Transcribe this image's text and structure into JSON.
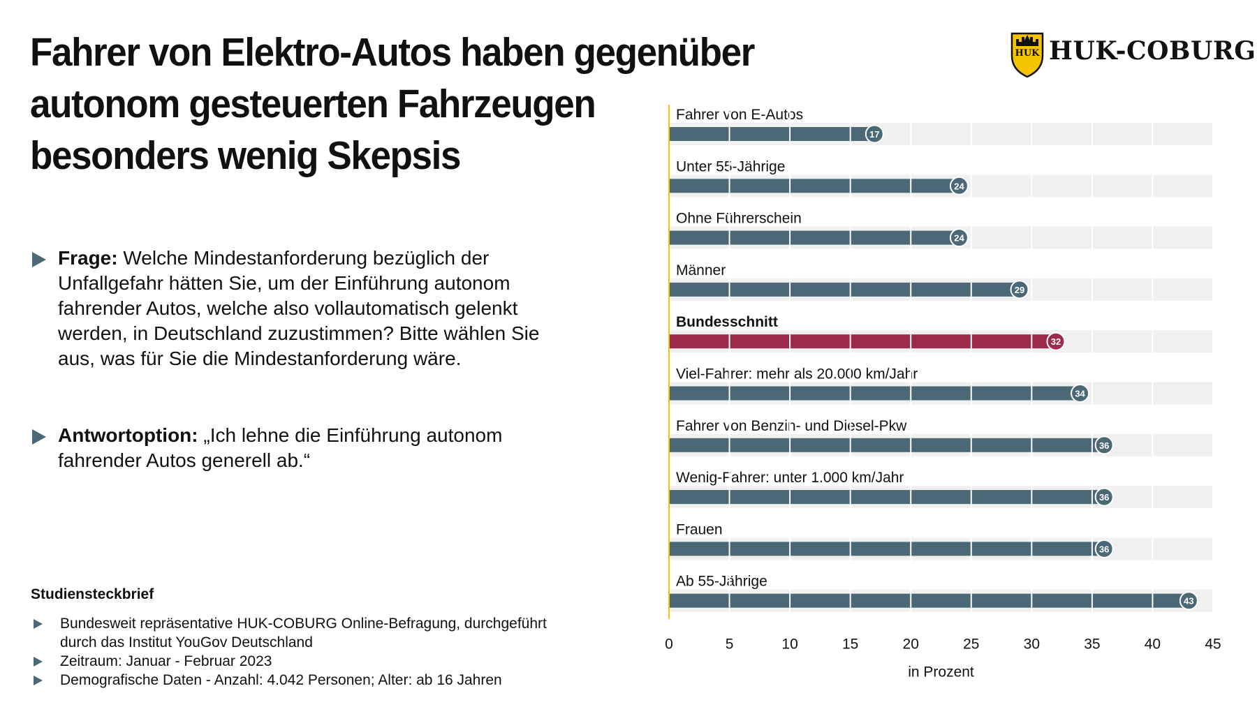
{
  "title_lines": [
    "Fahrer von Elektro-Autos haben gegenüber",
    "autonom gesteuerten Fahrzeugen",
    "besonders wenig Skepsis"
  ],
  "logo": {
    "text": "HUK-COBURG",
    "badge_text": "HUK",
    "color": "#f5c400"
  },
  "question": {
    "label": "Frage:",
    "text": " Welche Mindestanforderung bezüglich der Unfallgefahr hätten Sie, um der Einführung autonom fahrender Autos, welche also vollautomatisch gelenkt werden, in Deutschland zuzustimmen? Bitte wählen Sie aus, was für Sie die Mindestanforderung wäre."
  },
  "answer": {
    "label": "Antwortoption:",
    "text": " „Ich lehne die Einführung autonom fahrender Autos generell ab.“"
  },
  "study": {
    "title": "Studiensteckbrief",
    "items": [
      "Bundesweit repräsentative HUK-COBURG Online-Befragung, durchgeführt durch das Institut YouGov Deutschland",
      "Zeitraum: Januar - Februar 2023",
      "Demografische Daten - Anzahl: 4.042 Personen; Alter: ab 16 Jahren"
    ]
  },
  "chart_data": {
    "type": "bar",
    "orientation": "horizontal",
    "categories": [
      "Fahrer von E-Autos",
      "Unter 55-Jährige",
      "Ohne Führerschein",
      "Männer",
      "Bundesschnitt",
      "Viel-Fahrer: mehr als 20.000 km/Jahr",
      "Fahrer von Benzin- und Diesel-Pkw",
      "Wenig-Fahrer: unter 1.000 km/Jahr",
      "Frauen",
      "Ab 55-Jährige"
    ],
    "values": [
      17,
      24,
      24,
      29,
      32,
      34,
      36,
      36,
      36,
      43
    ],
    "highlight_index": 4,
    "xlim": [
      0,
      45
    ],
    "xticks": [
      0,
      5,
      10,
      15,
      20,
      25,
      30,
      35,
      40,
      45
    ],
    "xlabel": "in Prozent",
    "colors": {
      "bar": "#4b6876",
      "highlight": "#9b2a4c",
      "track": "#f0f0f0",
      "axis": "#f5c400"
    }
  }
}
